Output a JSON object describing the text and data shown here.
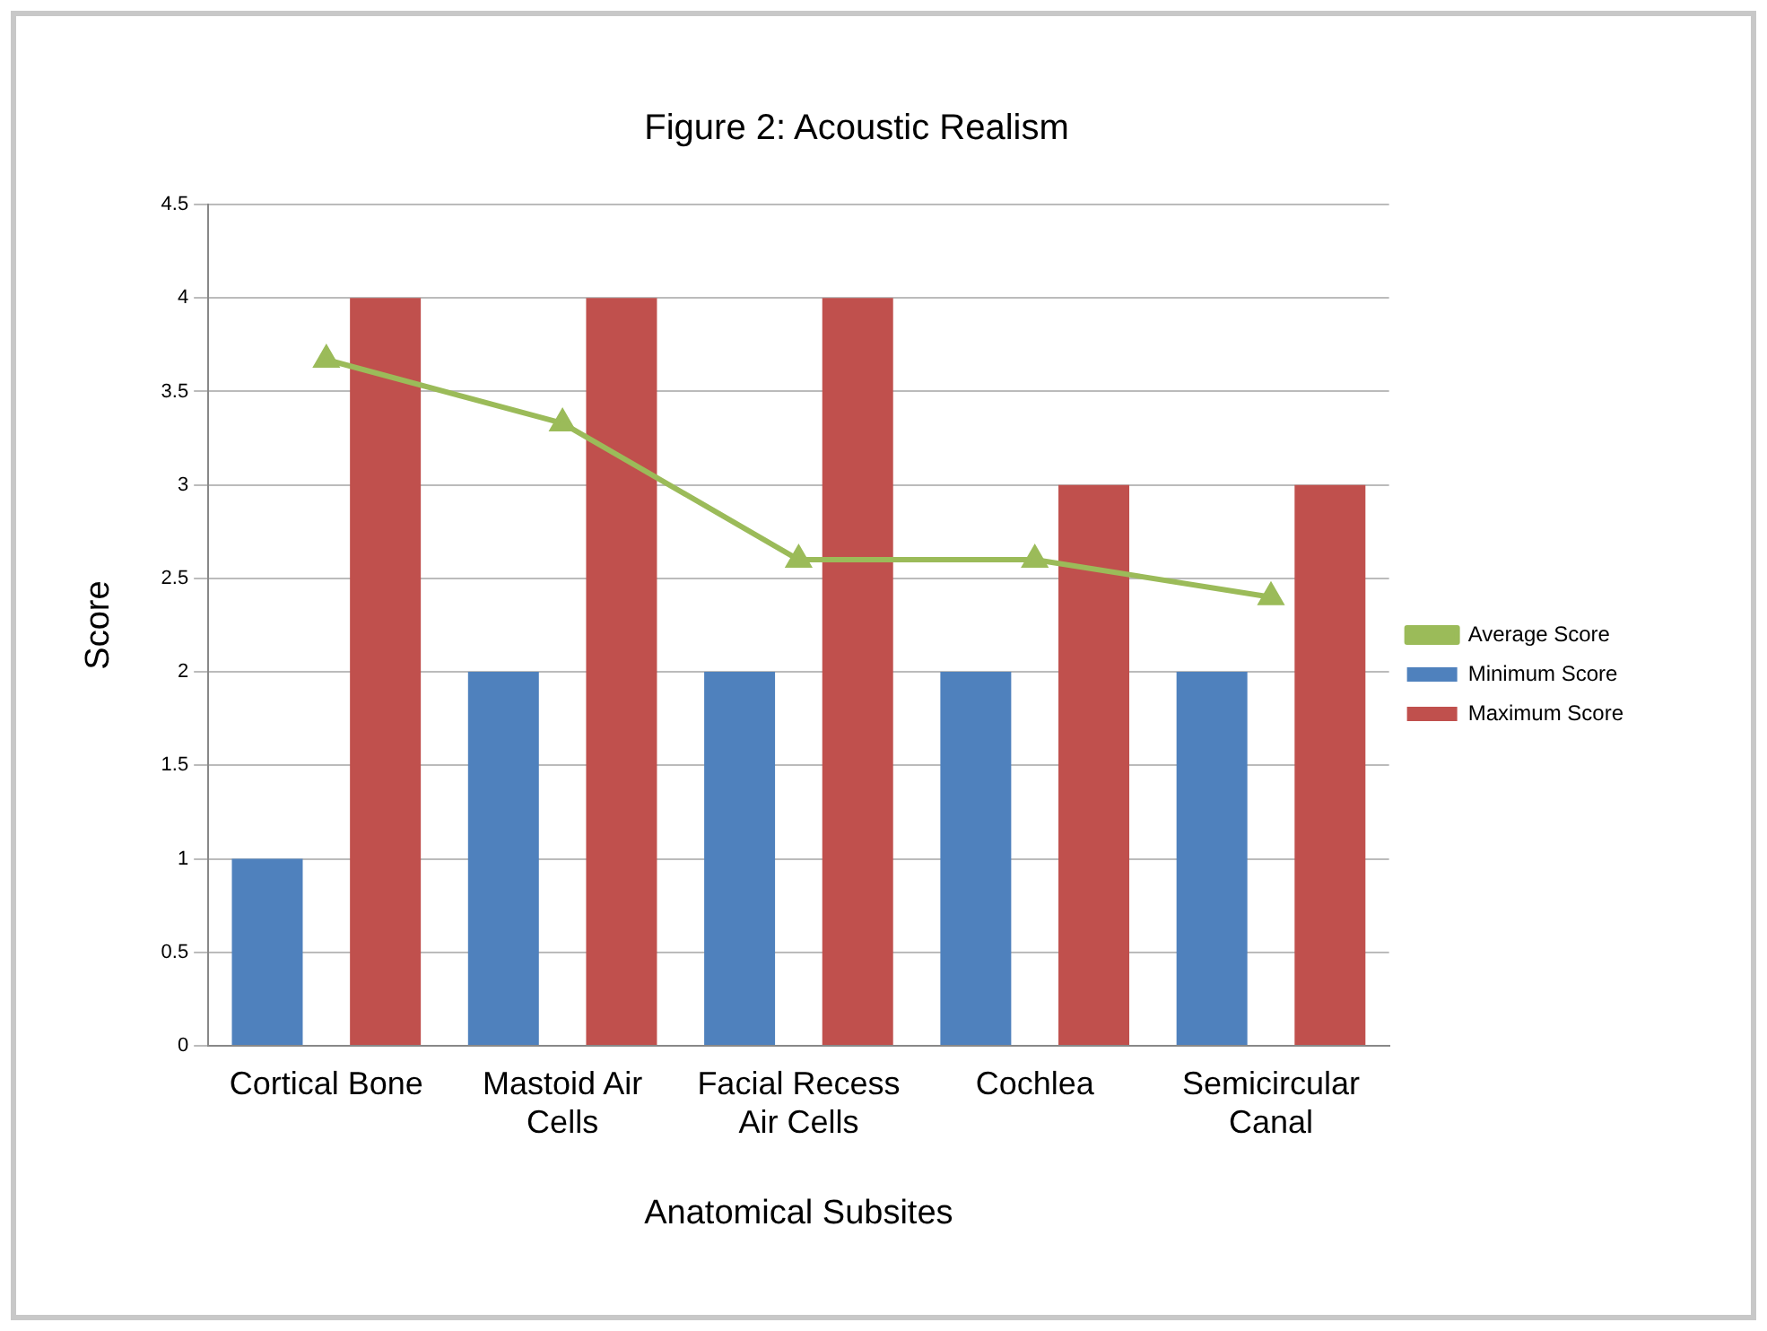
{
  "chart_data": {
    "type": "bar",
    "title": "Figure 2: Acoustic Realism",
    "xlabel": "Anatomical Subsites",
    "ylabel": "Score",
    "categories": [
      "Cortical Bone",
      "Mastoid Air Cells",
      "Facial Recess Air Cells",
      "Cochlea",
      "Semicircular Canal"
    ],
    "series": [
      {
        "name": "Minimum Score",
        "color": "#4f81bd",
        "values": [
          1,
          2,
          2,
          2,
          2
        ]
      },
      {
        "name": "Maximum Score",
        "color": "#c0504d",
        "values": [
          4,
          4,
          4,
          3,
          3
        ]
      },
      {
        "name": "Average Score",
        "color": "#9bbb59",
        "type": "line",
        "marker": "triangle",
        "values": [
          3.67,
          3.33,
          2.6,
          2.6,
          2.4
        ]
      }
    ],
    "ylim": [
      0,
      4.5
    ],
    "yticks": [
      0,
      0.5,
      1,
      1.5,
      2,
      2.5,
      3,
      3.5,
      4,
      4.5
    ],
    "grid": "y",
    "legend": "right"
  }
}
